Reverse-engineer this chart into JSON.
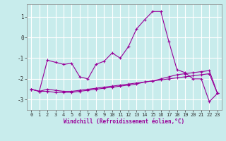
{
  "background_color": "#c8ecec",
  "grid_color": "#ffffff",
  "line_color": "#990099",
  "x_values": [
    0,
    1,
    2,
    3,
    4,
    5,
    6,
    7,
    8,
    9,
    10,
    11,
    12,
    13,
    14,
    15,
    16,
    17,
    18,
    19,
    20,
    21,
    22,
    23
  ],
  "line1_y": [
    -2.5,
    -2.6,
    -1.1,
    -1.2,
    -1.3,
    -1.25,
    -1.9,
    -2.0,
    -1.3,
    -1.15,
    -0.75,
    -1.0,
    -0.45,
    0.4,
    0.85,
    1.25,
    1.25,
    -0.2,
    -1.55,
    -1.7,
    -2.0,
    -2.0,
    -3.1,
    -2.7
  ],
  "line2_y": [
    -2.5,
    -2.6,
    -2.5,
    -2.55,
    -2.6,
    -2.6,
    -2.55,
    -2.5,
    -2.45,
    -2.4,
    -2.35,
    -2.3,
    -2.25,
    -2.2,
    -2.15,
    -2.1,
    -2.05,
    -2.0,
    -1.95,
    -1.9,
    -1.85,
    -1.8,
    -1.75,
    -2.7
  ],
  "line3_y": [
    -2.5,
    -2.6,
    -2.6,
    -2.65,
    -2.65,
    -2.65,
    -2.6,
    -2.55,
    -2.5,
    -2.45,
    -2.4,
    -2.35,
    -2.3,
    -2.25,
    -2.15,
    -2.1,
    -2.0,
    -1.9,
    -1.8,
    -1.75,
    -1.7,
    -1.65,
    -1.6,
    -2.7
  ],
  "xlabel": "Windchill (Refroidissement éolien,°C)",
  "ylim": [
    -3.5,
    1.6
  ],
  "xlim": [
    -0.5,
    23.5
  ],
  "yticks": [
    -3,
    -2,
    -1,
    0,
    1
  ],
  "xlabel_fontsize": 5.5,
  "tick_fontsize": 5.0,
  "line_width": 0.8,
  "marker_size": 2.5
}
